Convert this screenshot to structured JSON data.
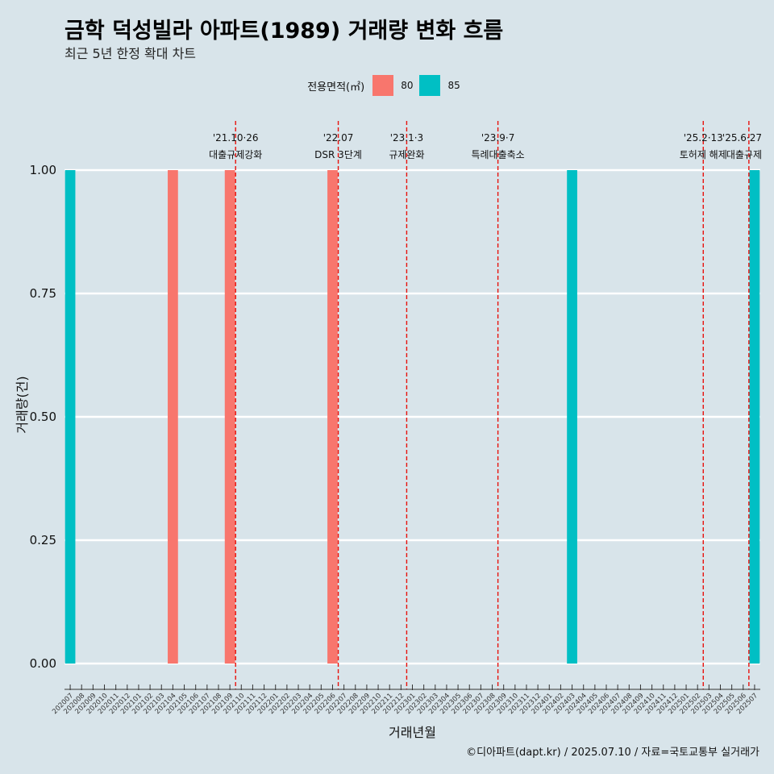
{
  "title": "금학 덕성빌라 아파트(1989) 거래량 변화 흐름",
  "subtitle": "최근 5년 한정 확대 차트",
  "caption": "©디아파트(dapt.kr) / 2025.07.10 / 자료=국토교통부 실거래가",
  "legend": {
    "title": "전용면적(㎡)",
    "items": [
      {
        "label": "80",
        "color": "#f8766d"
      },
      {
        "label": "85",
        "color": "#00bfc4"
      }
    ]
  },
  "chart_data": {
    "type": "bar",
    "xlabel": "거래년월",
    "ylabel": "거래량(건)",
    "ylim": [
      0,
      1
    ],
    "yticks": [
      "0.00",
      "0.25",
      "0.50",
      "0.75",
      "1.00"
    ],
    "categories": [
      "202007",
      "202008",
      "202009",
      "202010",
      "202011",
      "202012",
      "202101",
      "202102",
      "202103",
      "202104",
      "202105",
      "202106",
      "202107",
      "202108",
      "202109",
      "202110",
      "202111",
      "202112",
      "202201",
      "202202",
      "202203",
      "202204",
      "202205",
      "202206",
      "202207",
      "202208",
      "202209",
      "202210",
      "202211",
      "202212",
      "202301",
      "202302",
      "202303",
      "202304",
      "202305",
      "202306",
      "202307",
      "202308",
      "202309",
      "202310",
      "202311",
      "202312",
      "202401",
      "202402",
      "202403",
      "202404",
      "202405",
      "202406",
      "202407",
      "202408",
      "202409",
      "202410",
      "202411",
      "202412",
      "202501",
      "202502",
      "202503",
      "202504",
      "202505",
      "202506",
      "202507"
    ],
    "series": [
      {
        "name": "80",
        "color": "#f8766d",
        "points": [
          {
            "x": "202104",
            "y": 1
          },
          {
            "x": "202109",
            "y": 1
          },
          {
            "x": "202206",
            "y": 1
          }
        ]
      },
      {
        "name": "85",
        "color": "#00bfc4",
        "points": [
          {
            "x": "202007",
            "y": 1
          },
          {
            "x": "202403",
            "y": 1
          },
          {
            "x": "202507",
            "y": 1
          }
        ]
      }
    ],
    "events": [
      {
        "x": "202110",
        "offset": -0.5,
        "date": "'21.10·26",
        "label": "대출규제강화"
      },
      {
        "x": "202207",
        "offset": -0.5,
        "date": "'22.07",
        "label": "DSR 3단계"
      },
      {
        "x": "202301",
        "offset": -0.5,
        "date": "'23.1·3",
        "label": "규제완화"
      },
      {
        "x": "202309",
        "offset": -0.5,
        "date": "'23.9·7",
        "label": "특례대출축소"
      },
      {
        "x": "202502",
        "offset": 0.5,
        "date": "'25.2·13",
        "label": "토허제 해제"
      },
      {
        "x": "202506",
        "offset": 0.5,
        "date": "'25.6·27",
        "label": "대출규제"
      }
    ]
  }
}
